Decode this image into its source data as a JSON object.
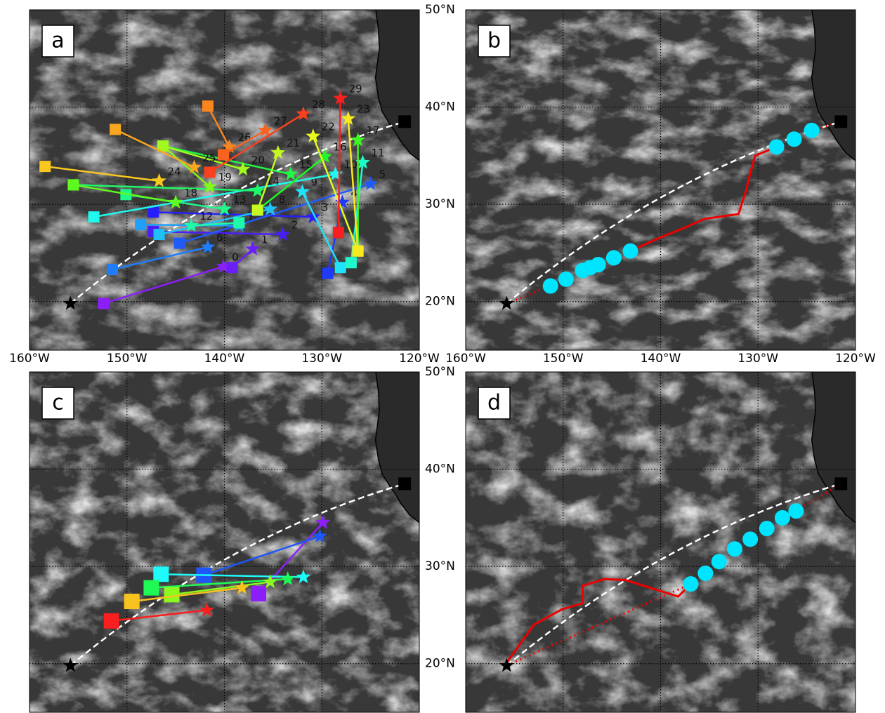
{
  "lonlim": [
    -160,
    -120
  ],
  "latlim": [
    15,
    50
  ],
  "lon_ticks": [
    {
      "value": -160,
      "label": "160°W"
    },
    {
      "value": -150,
      "label": "150°W"
    },
    {
      "value": -140,
      "label": "140°W"
    },
    {
      "value": -130,
      "label": "130°W"
    },
    {
      "value": -120,
      "label": "120°W"
    }
  ],
  "lat_ticks": [
    {
      "value": 50,
      "label": "50°N"
    },
    {
      "value": 40,
      "label": "40°N"
    },
    {
      "value": 30,
      "label": "30°N"
    },
    {
      "value": 20,
      "label": "20°N"
    }
  ],
  "origin": [
    -155.8,
    19.8
  ],
  "destination": [
    -121.5,
    38.5
  ],
  "colormap": "rainbow",
  "panels": [
    {
      "label": "a",
      "lon_labels": true,
      "lat_labels": true,
      "trajectories": [
        {
          "label": "0",
          "start": [
            -152.4,
            19.8
          ],
          "end": [
            -140.1,
            23.6
          ]
        },
        {
          "label": "1",
          "start": [
            -139.2,
            23.5
          ],
          "end": [
            -137.1,
            25.4
          ]
        },
        {
          "label": "2",
          "start": [
            -147.3,
            27.2
          ],
          "end": [
            -134.0,
            26.9
          ]
        },
        {
          "label": "3",
          "start": [
            -147.3,
            29.2
          ],
          "end": [
            -130.9,
            28.7
          ]
        },
        {
          "label": "4",
          "start": [
            -129.4,
            22.9
          ],
          "end": [
            -127.9,
            30.2
          ]
        },
        {
          "label": "5",
          "start": [
            -144.6,
            26.0
          ],
          "end": [
            -125.0,
            32.1
          ]
        },
        {
          "label": "6",
          "start": [
            -151.5,
            23.3
          ],
          "end": [
            -141.7,
            25.6
          ]
        },
        {
          "label": "7",
          "start": [
            -148.6,
            27.9
          ],
          "end": [
            -138.5,
            27.8
          ]
        },
        {
          "label": "8",
          "start": [
            -146.7,
            26.9
          ],
          "end": [
            -135.3,
            29.5
          ]
        },
        {
          "label": "9",
          "start": [
            -128.1,
            23.5
          ],
          "end": [
            -132.0,
            31.3
          ]
        },
        {
          "label": "10",
          "start": [
            -153.4,
            28.7
          ],
          "end": [
            -128.6,
            33.1
          ]
        },
        {
          "label": "11",
          "start": [
            -127.0,
            24.0
          ],
          "end": [
            -125.8,
            34.3
          ]
        },
        {
          "label": "12",
          "start": [
            -138.5,
            28.1
          ],
          "end": [
            -143.4,
            27.8
          ]
        },
        {
          "label": "13",
          "start": [
            -150.1,
            31.0
          ],
          "end": [
            -140.0,
            29.5
          ]
        },
        {
          "label": "14",
          "start": [
            -155.5,
            32.0
          ],
          "end": [
            -136.6,
            31.4
          ]
        },
        {
          "label": "15",
          "start": [
            -146.3,
            36.0
          ],
          "end": [
            -133.2,
            33.1
          ]
        },
        {
          "label": "16",
          "start": [
            -136.6,
            29.4
          ],
          "end": [
            -129.7,
            34.9
          ]
        },
        {
          "label": "17",
          "start": [
            -126.3,
            25.2
          ],
          "end": [
            -126.3,
            36.6
          ]
        },
        {
          "label": "18",
          "start": [
            -155.5,
            32.0
          ],
          "end": [
            -145.0,
            30.2
          ]
        },
        {
          "label": "19",
          "start": [
            -146.3,
            36.0
          ],
          "end": [
            -141.5,
            31.8
          ]
        },
        {
          "label": "20",
          "start": [
            -146.3,
            36.0
          ],
          "end": [
            -138.1,
            33.6
          ]
        },
        {
          "label": "21",
          "start": [
            -136.6,
            29.4
          ],
          "end": [
            -134.5,
            35.3
          ]
        },
        {
          "label": "22",
          "start": [
            -126.3,
            25.2
          ],
          "end": [
            -130.9,
            37.0
          ]
        },
        {
          "label": "23",
          "start": [
            -126.3,
            25.2
          ],
          "end": [
            -127.3,
            38.8
          ]
        },
        {
          "label": "24",
          "start": [
            -158.4,
            33.9
          ],
          "end": [
            -146.7,
            32.4
          ]
        },
        {
          "label": "25",
          "start": [
            -151.2,
            37.7
          ],
          "end": [
            -143.1,
            33.8
          ]
        },
        {
          "label": "26",
          "start": [
            -141.7,
            40.1
          ],
          "end": [
            -139.5,
            35.9
          ]
        },
        {
          "label": "27",
          "start": [
            -140.1,
            35.1
          ],
          "end": [
            -135.8,
            37.6
          ]
        },
        {
          "label": "28",
          "start": [
            -141.5,
            33.3
          ],
          "end": [
            -131.9,
            39.3
          ]
        },
        {
          "label": "29",
          "start": [
            -128.3,
            27.1
          ],
          "end": [
            -128.1,
            40.9
          ]
        }
      ]
    },
    {
      "label": "b",
      "lon_labels": true,
      "lat_labels": false,
      "track": {
        "lon": [
          -143.1,
          -140.0,
          -137.5,
          -135.5,
          -132.0,
          -131.2,
          -130.8,
          -130.3,
          -128.1
        ],
        "lat": [
          25.2,
          26.6,
          27.6,
          28.5,
          29.0,
          31.5,
          33.2,
          35.0,
          35.9
        ]
      },
      "dots": {
        "lon": [
          -151.3,
          -149.7,
          -148.0,
          -147.2,
          -146.4,
          -144.8,
          -143.1,
          -128.1,
          -126.3,
          -124.5
        ],
        "lat": [
          21.6,
          22.3,
          23.2,
          23.5,
          23.8,
          24.5,
          25.2,
          35.9,
          36.7,
          37.6
        ]
      }
    },
    {
      "label": "c",
      "lon_labels": false,
      "lat_labels": true,
      "trajectories": [
        {
          "start": [
            -136.5,
            27.2
          ],
          "end": [
            -129.9,
            34.5
          ]
        },
        {
          "start": [
            -142.1,
            29.1
          ],
          "end": [
            -130.2,
            33.1
          ]
        },
        {
          "start": [
            -146.5,
            29.2
          ],
          "end": [
            -131.9,
            28.9
          ]
        },
        {
          "start": [
            -147.5,
            27.8
          ],
          "end": [
            -133.5,
            28.7
          ]
        },
        {
          "start": [
            -145.4,
            27.1
          ],
          "end": [
            -135.3,
            28.4
          ]
        },
        {
          "start": [
            -149.5,
            26.4
          ],
          "end": [
            -138.2,
            27.8
          ]
        },
        {
          "start": [
            -151.6,
            24.4
          ],
          "end": [
            -141.8,
            25.5
          ]
        }
      ]
    },
    {
      "label": "d",
      "lon_labels": false,
      "lat_labels": false,
      "track": {
        "lon": [
          -155.8,
          -153.0,
          -150.1,
          -148.0,
          -148.0,
          -145.8,
          -143.6,
          -138.2,
          -137.5
        ],
        "lat": [
          20.1,
          24.0,
          25.6,
          26.2,
          28.0,
          28.7,
          28.6,
          26.9,
          27.6
        ]
      },
      "dots": {
        "lon": [
          -136.9,
          -135.4,
          -134.0,
          -132.4,
          -130.8,
          -129.1,
          -127.5,
          -126.1
        ],
        "lat": [
          28.2,
          29.3,
          30.5,
          31.8,
          32.8,
          33.9,
          35.0,
          35.7
        ]
      }
    }
  ]
}
